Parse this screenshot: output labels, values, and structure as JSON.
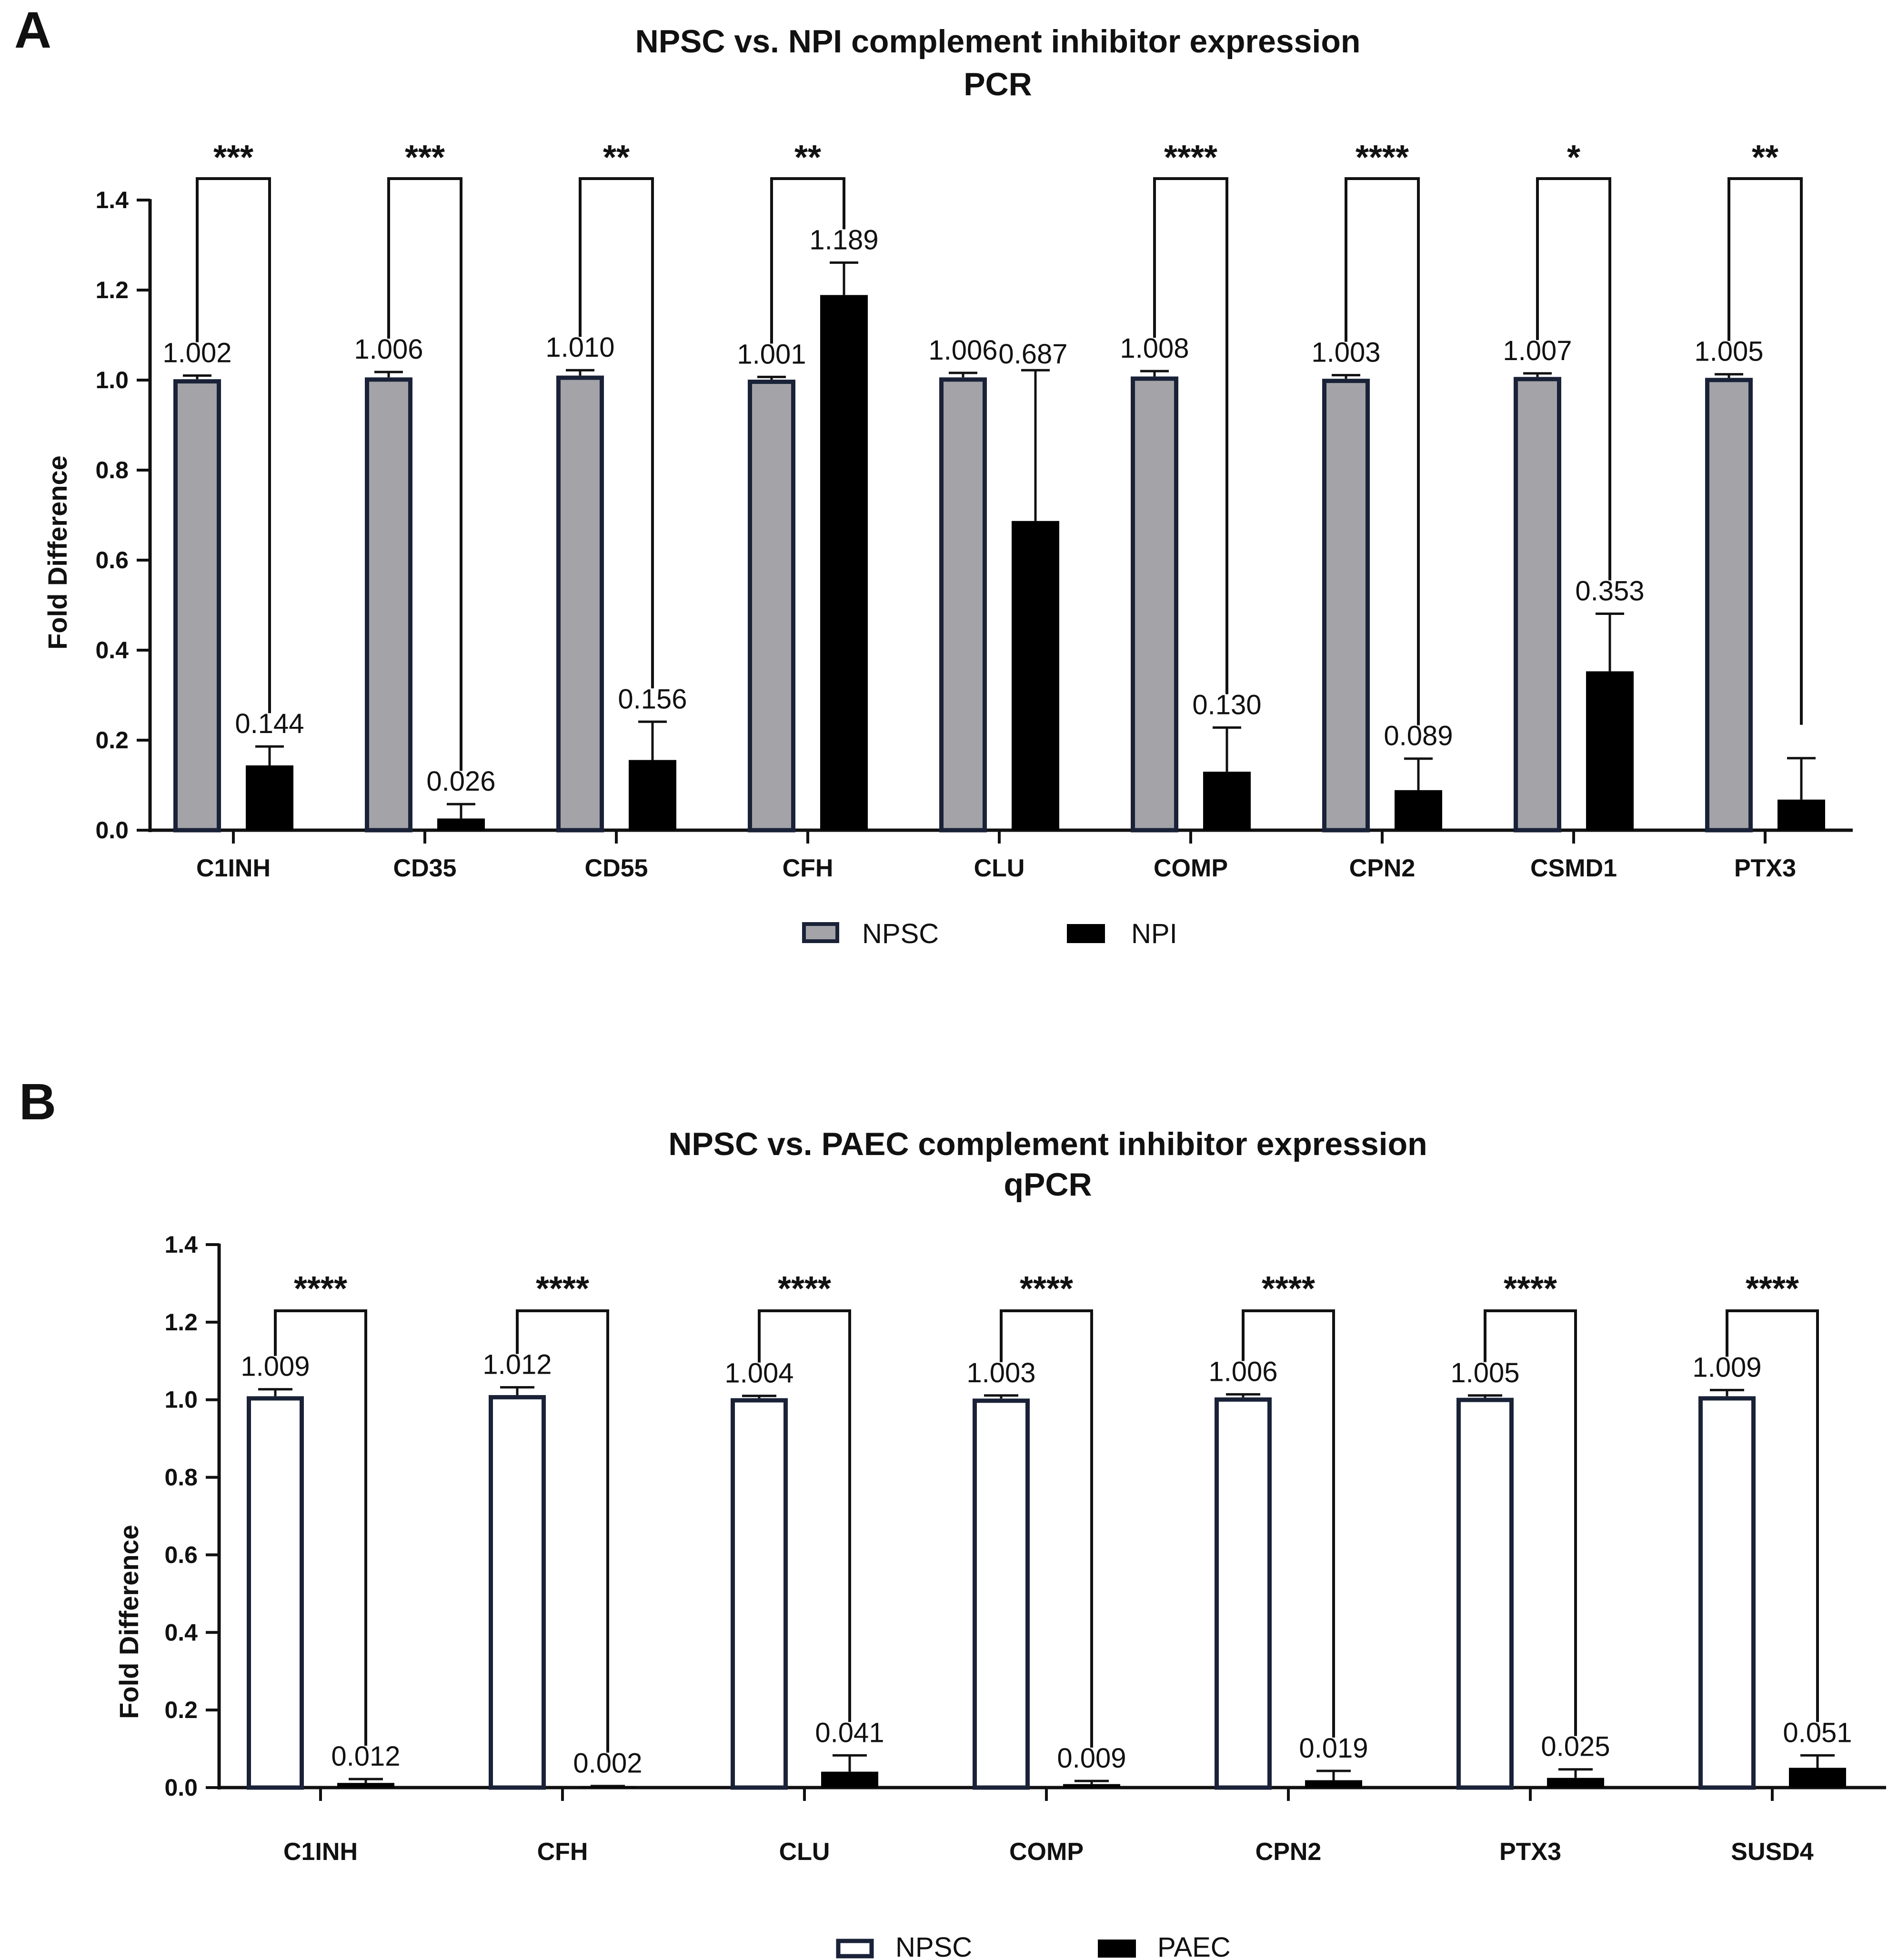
{
  "chart_data": [
    {
      "panel": "A",
      "type": "bar",
      "title": "NPSC vs. NPI complement inhibitor expression",
      "subtitle": "PCR",
      "ylabel": "Fold Difference",
      "xlabel": "",
      "ylim": [
        0,
        1.4
      ],
      "yticks": [
        "0.0",
        "0.2",
        "0.4",
        "0.6",
        "0.8",
        "1.0",
        "1.2",
        "1.4"
      ],
      "grid": false,
      "legend_position": "bottom",
      "categories": [
        "C1INH",
        "CD35",
        "CD55",
        "CFH",
        "CLU",
        "COMP",
        "CPN2",
        "CSMD1",
        "PTX3"
      ],
      "series": [
        {
          "name": "NPSC",
          "style": "grey-fill",
          "fill": "#a3a3a8",
          "stroke": "#1a2238",
          "values": [
            1.002,
            1.006,
            1.01,
            1.001,
            1.006,
            1.008,
            1.003,
            1.007,
            1.005
          ],
          "errors": [
            0.008,
            0.012,
            0.012,
            0.006,
            0.01,
            0.012,
            0.008,
            0.008,
            0.008
          ],
          "labels": [
            "1.002",
            "1.006",
            "1.010",
            "1.001",
            "1.006",
            "1.008",
            "1.003",
            "1.007",
            "1.005"
          ]
        },
        {
          "name": "NPI",
          "style": "black-fill",
          "fill": "#000000",
          "stroke": "#000000",
          "values": [
            0.144,
            0.026,
            0.156,
            1.189,
            0.687,
            0.13,
            0.089,
            0.353,
            0.068
          ],
          "errors": [
            0.042,
            0.032,
            0.085,
            0.072,
            0.335,
            0.098,
            0.07,
            0.128,
            0.092
          ],
          "labels": [
            "0.144",
            "0.026",
            "0.156",
            "1.189",
            "0.687",
            "0.130",
            "0.089",
            "0.353",
            ""
          ]
        }
      ],
      "significance": [
        "***",
        "***",
        "**",
        "**",
        "",
        "****",
        "****",
        "*",
        "**"
      ]
    },
    {
      "panel": "B",
      "type": "bar",
      "title": "NPSC vs. PAEC complement inhibitor expression",
      "subtitle": "qPCR",
      "ylabel": "Fold Difference",
      "xlabel": "",
      "ylim": [
        0,
        1.4
      ],
      "yticks": [
        "0.0",
        "0.2",
        "0.4",
        "0.6",
        "0.8",
        "1.0",
        "1.2",
        "1.4"
      ],
      "grid": false,
      "legend_position": "bottom",
      "categories": [
        "C1INH",
        "CFH",
        "CLU",
        "COMP",
        "CPN2",
        "PTX3",
        "SUSD4"
      ],
      "series": [
        {
          "name": "NPSC",
          "style": "open",
          "fill": "#ffffff",
          "stroke": "#1a2238",
          "values": [
            1.009,
            1.012,
            1.004,
            1.003,
            1.006,
            1.005,
            1.009
          ],
          "errors": [
            0.018,
            0.02,
            0.006,
            0.008,
            0.008,
            0.006,
            0.016
          ],
          "labels": [
            "1.009",
            "1.012",
            "1.004",
            "1.003",
            "1.006",
            "1.005",
            "1.009"
          ]
        },
        {
          "name": "PAEC",
          "style": "black-fill",
          "fill": "#000000",
          "stroke": "#000000",
          "values": [
            0.012,
            0.002,
            0.041,
            0.009,
            0.019,
            0.025,
            0.051
          ],
          "errors": [
            0.01,
            0.002,
            0.042,
            0.008,
            0.024,
            0.022,
            0.032
          ],
          "labels": [
            "0.012",
            "0.002",
            "0.041",
            "0.009",
            "0.019",
            "0.025",
            "0.051"
          ]
        }
      ],
      "significance": [
        "****",
        "****",
        "****",
        "****",
        "****",
        "****",
        "****"
      ]
    }
  ]
}
